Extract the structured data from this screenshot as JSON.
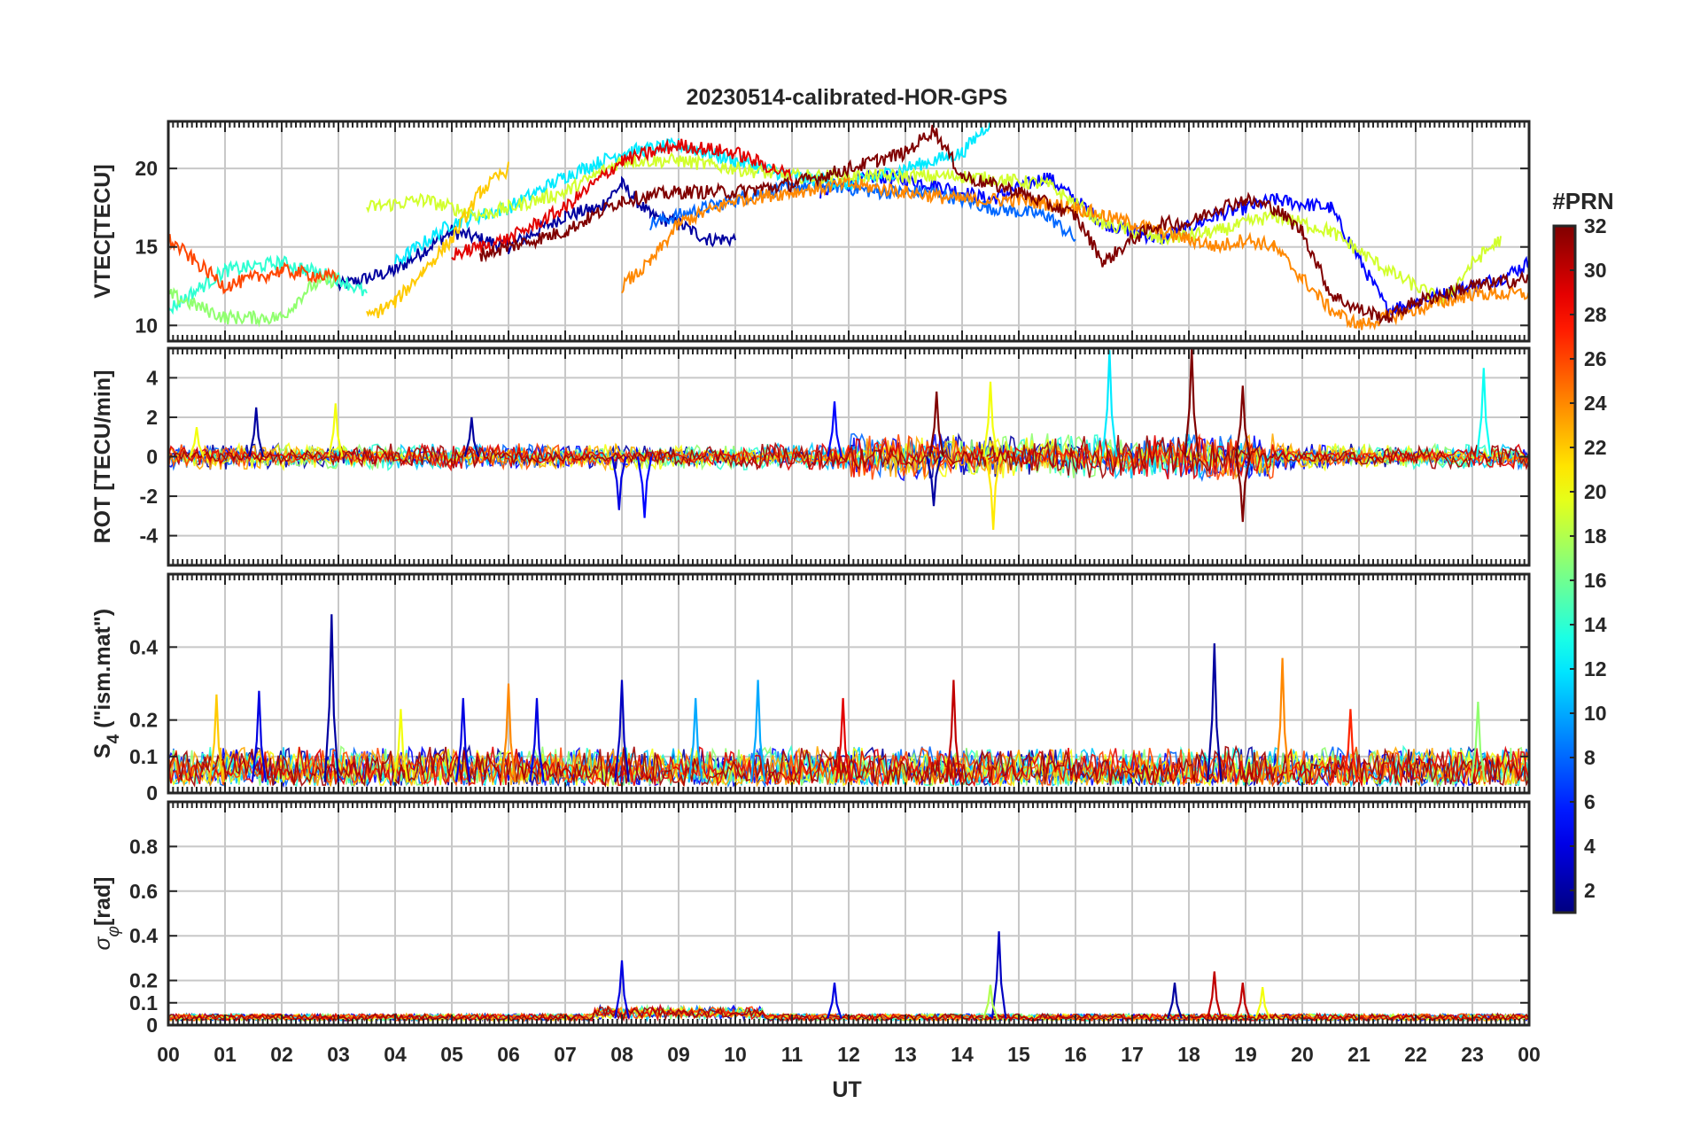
{
  "chart_data": {
    "type": "line",
    "title": "20230514-calibrated-HOR-GPS",
    "xlabel": "UT",
    "x_range_hours": [
      0,
      24
    ],
    "x_tick_labels": [
      "00",
      "01",
      "02",
      "03",
      "04",
      "05",
      "06",
      "07",
      "08",
      "09",
      "10",
      "11",
      "12",
      "13",
      "14",
      "15",
      "16",
      "17",
      "18",
      "19",
      "20",
      "21",
      "22",
      "23",
      "00"
    ],
    "colorbar": {
      "title": "#PRN",
      "range": [
        1,
        32
      ],
      "tick_labels": [
        "2",
        "4",
        "6",
        "8",
        "10",
        "12",
        "14",
        "16",
        "18",
        "20",
        "22",
        "24",
        "26",
        "28",
        "30",
        "32"
      ],
      "colormap": "jet"
    },
    "panels": [
      {
        "id": "vtec",
        "ylabel": "VTEC[TECU]",
        "ylim": [
          9,
          23
        ],
        "yticks": [
          10,
          15,
          20
        ],
        "ytick_labels": [
          "10",
          "15",
          "20"
        ],
        "series": [
          {
            "prn": 2,
            "x": [
              3.0,
              4.0,
              5.0,
              6.0,
              7.0,
              7.6,
              8.0,
              8.5,
              9.0,
              9.5,
              10.0
            ],
            "y": [
              12.5,
              13.5,
              16.0,
              15.0,
              17.0,
              17.5,
              19.0,
              17.0,
              16.5,
              15.5,
              15.5
            ]
          },
          {
            "prn": 5,
            "x": [
              11.5,
              12.5,
              13.5,
              14.5,
              15.5,
              16.5,
              17.5,
              18.5,
              19.5,
              20.5,
              21.5,
              22.5,
              23.5,
              24.0
            ],
            "y": [
              18.5,
              19.5,
              19.0,
              18.0,
              19.5,
              16.5,
              15.5,
              17.0,
              18.0,
              17.5,
              11.0,
              12.0,
              13.0,
              14.0
            ]
          },
          {
            "prn": 8,
            "x": [
              8.5,
              9.5,
              10.5,
              11.5,
              12.5,
              13.5,
              14.5,
              15.5,
              16.0
            ],
            "y": [
              16.5,
              17.5,
              18.5,
              19.0,
              18.5,
              18.5,
              17.5,
              17.0,
              15.5
            ]
          },
          {
            "prn": 12,
            "x": [
              4.0,
              5.0,
              6.0,
              7.0,
              8.0,
              9.0,
              10.0,
              11.0,
              12.0,
              13.0,
              14.0,
              14.5
            ],
            "y": [
              14.0,
              16.5,
              17.5,
              19.5,
              21.0,
              21.5,
              20.5,
              19.5,
              19.0,
              20.0,
              21.0,
              23.0
            ]
          },
          {
            "prn": 14,
            "x": [
              0.0,
              1.0,
              2.0,
              3.0,
              3.5
            ],
            "y": [
              11.0,
              13.5,
              14.0,
              13.0,
              12.0
            ]
          },
          {
            "prn": 17,
            "x": [
              0.0,
              1.0,
              2.0,
              2.5,
              3.0
            ],
            "y": [
              12.0,
              10.5,
              10.5,
              12.5,
              13.0
            ]
          },
          {
            "prn": 19,
            "x": [
              3.5,
              4.5,
              5.5,
              6.0,
              7.0,
              8.0,
              9.0,
              10.0,
              11.0,
              12.5,
              14.0,
              15.5,
              16.5,
              17.5,
              18.5,
              19.5,
              20.5,
              21.5,
              22.5,
              23.0,
              23.5
            ],
            "y": [
              17.5,
              18.0,
              17.0,
              17.5,
              18.5,
              20.5,
              20.5,
              20.0,
              19.5,
              19.5,
              19.5,
              19.0,
              16.5,
              15.5,
              16.0,
              17.0,
              16.0,
              13.5,
              11.5,
              14.0,
              15.5
            ]
          },
          {
            "prn": 22,
            "x": [
              3.5,
              4.0,
              4.5,
              5.0,
              5.5,
              6.0
            ],
            "y": [
              10.5,
              11.5,
              13.5,
              15.5,
              18.5,
              20.0
            ]
          },
          {
            "prn": 24,
            "x": [
              8.0,
              8.5,
              9.0,
              10.0,
              11.0,
              12.0,
              13.0,
              14.0,
              15.0,
              16.0,
              16.5,
              17.0,
              17.5,
              18.0,
              18.5,
              19.0,
              19.5,
              20.0,
              20.5,
              21.0,
              22.0,
              23.0,
              24.0
            ],
            "y": [
              12.5,
              14.0,
              16.5,
              18.0,
              18.5,
              19.0,
              18.5,
              18.0,
              18.0,
              17.5,
              17.0,
              16.5,
              16.0,
              15.5,
              15.0,
              15.5,
              15.0,
              13.0,
              11.0,
              10.0,
              11.0,
              12.0,
              12.0
            ]
          },
          {
            "prn": 26,
            "x": [
              0.0,
              1.0,
              2.0,
              3.0
            ],
            "y": [
              15.5,
              12.5,
              13.5,
              13.0
            ]
          },
          {
            "prn": 29,
            "x": [
              5.0,
              6.0,
              7.0,
              8.0,
              9.0,
              10.0,
              11.0
            ],
            "y": [
              14.5,
              15.5,
              17.5,
              20.5,
              21.5,
              21.0,
              19.5
            ]
          },
          {
            "prn": 32,
            "x": [
              5.5,
              6.0,
              7.0,
              8.0,
              9.0,
              10.0,
              11.0,
              12.0,
              12.5,
              13.0,
              13.5,
              14.0,
              15.0,
              16.0,
              16.5,
              17.0,
              17.5,
              18.0,
              18.5,
              19.0,
              19.5,
              20.0,
              20.5,
              21.0,
              21.5,
              22.0,
              23.0,
              24.0
            ],
            "y": [
              14.5,
              15.0,
              16.0,
              18.0,
              18.5,
              18.5,
              19.0,
              20.0,
              20.5,
              21.0,
              22.5,
              19.5,
              18.5,
              17.0,
              14.0,
              15.5,
              16.5,
              16.5,
              17.5,
              18.0,
              17.5,
              16.0,
              12.0,
              11.0,
              10.5,
              11.5,
              12.5,
              13.0
            ]
          }
        ]
      },
      {
        "id": "rot",
        "ylabel": "ROT [TECU/min]",
        "ylim": [
          -5.5,
          5.5
        ],
        "yticks": [
          -4,
          -2,
          0,
          2,
          4
        ],
        "ytick_labels": [
          "-4",
          "-2",
          "0",
          "2",
          "4"
        ],
        "spikes": [
          {
            "prn": 2,
            "x": 1.55,
            "y": 2.5
          },
          {
            "prn": 20,
            "x": 0.5,
            "y": 1.5
          },
          {
            "prn": 20,
            "x": 2.95,
            "y": 2.7
          },
          {
            "prn": 2,
            "x": 5.35,
            "y": 2.0
          },
          {
            "prn": 4,
            "x": 7.95,
            "y": -2.7
          },
          {
            "prn": 5,
            "x": 8.4,
            "y": -3.1
          },
          {
            "prn": 5,
            "x": 11.75,
            "y": 2.8
          },
          {
            "prn": 32,
            "x": 13.55,
            "y": 3.3
          },
          {
            "prn": 2,
            "x": 13.5,
            "y": -2.5
          },
          {
            "prn": 20,
            "x": 14.5,
            "y": 3.8
          },
          {
            "prn": 21,
            "x": 14.55,
            "y": -3.7
          },
          {
            "prn": 12,
            "x": 16.6,
            "y": 5.4
          },
          {
            "prn": 32,
            "x": 18.05,
            "y": 5.5
          },
          {
            "prn": 32,
            "x": 18.95,
            "y": -3.3
          },
          {
            "prn": 32,
            "x": 18.95,
            "y": 3.6
          },
          {
            "prn": 13,
            "x": 23.2,
            "y": 4.5
          }
        ]
      },
      {
        "id": "s4",
        "ylabel": "S4 (\"ism.mat\")",
        "ylabel_main": "S",
        "ylabel_sub": "4",
        "ylabel_rest": " (\"ism.mat\")",
        "ylim": [
          0,
          0.6
        ],
        "yticks": [
          0,
          0.1,
          0.2,
          0.4
        ],
        "ytick_labels": [
          "0",
          "0.1",
          "0.2",
          "0.4"
        ],
        "spikes": [
          {
            "prn": 22,
            "x": 0.85,
            "y": 0.27
          },
          {
            "prn": 4,
            "x": 1.6,
            "y": 0.28
          },
          {
            "prn": 2,
            "x": 2.88,
            "y": 0.49
          },
          {
            "prn": 20,
            "x": 4.1,
            "y": 0.23
          },
          {
            "prn": 4,
            "x": 5.2,
            "y": 0.26
          },
          {
            "prn": 24,
            "x": 6.0,
            "y": 0.3
          },
          {
            "prn": 4,
            "x": 6.5,
            "y": 0.26
          },
          {
            "prn": 3,
            "x": 8.0,
            "y": 0.31
          },
          {
            "prn": 10,
            "x": 9.3,
            "y": 0.26
          },
          {
            "prn": 10,
            "x": 10.4,
            "y": 0.31
          },
          {
            "prn": 29,
            "x": 11.9,
            "y": 0.26
          },
          {
            "prn": 30,
            "x": 13.85,
            "y": 0.31
          },
          {
            "prn": 2,
            "x": 18.45,
            "y": 0.41
          },
          {
            "prn": 24,
            "x": 19.65,
            "y": 0.37
          },
          {
            "prn": 27,
            "x": 20.85,
            "y": 0.23
          },
          {
            "prn": 17,
            "x": 23.1,
            "y": 0.25
          }
        ]
      },
      {
        "id": "sigma_phi",
        "ylabel": "σφ[rad]",
        "ylabel_main": "σ",
        "ylabel_sub": "φ",
        "ylabel_rest": "[rad]",
        "ylim": [
          0,
          1.0
        ],
        "yticks": [
          0,
          0.1,
          0.2,
          0.4,
          0.6,
          0.8
        ],
        "ytick_labels": [
          "0",
          "0.1",
          "0.2",
          "0.4",
          "0.6",
          "0.8"
        ],
        "spikes": [
          {
            "prn": 4,
            "x": 8.0,
            "y": 0.29
          },
          {
            "prn": 3,
            "x": 14.65,
            "y": 0.42
          },
          {
            "prn": 4,
            "x": 11.75,
            "y": 0.19
          },
          {
            "prn": 30,
            "x": 18.45,
            "y": 0.24
          },
          {
            "prn": 2,
            "x": 17.75,
            "y": 0.19
          },
          {
            "prn": 30,
            "x": 18.95,
            "y": 0.19
          },
          {
            "prn": 20,
            "x": 19.3,
            "y": 0.17
          },
          {
            "prn": 18,
            "x": 14.5,
            "y": 0.18
          }
        ]
      }
    ]
  }
}
